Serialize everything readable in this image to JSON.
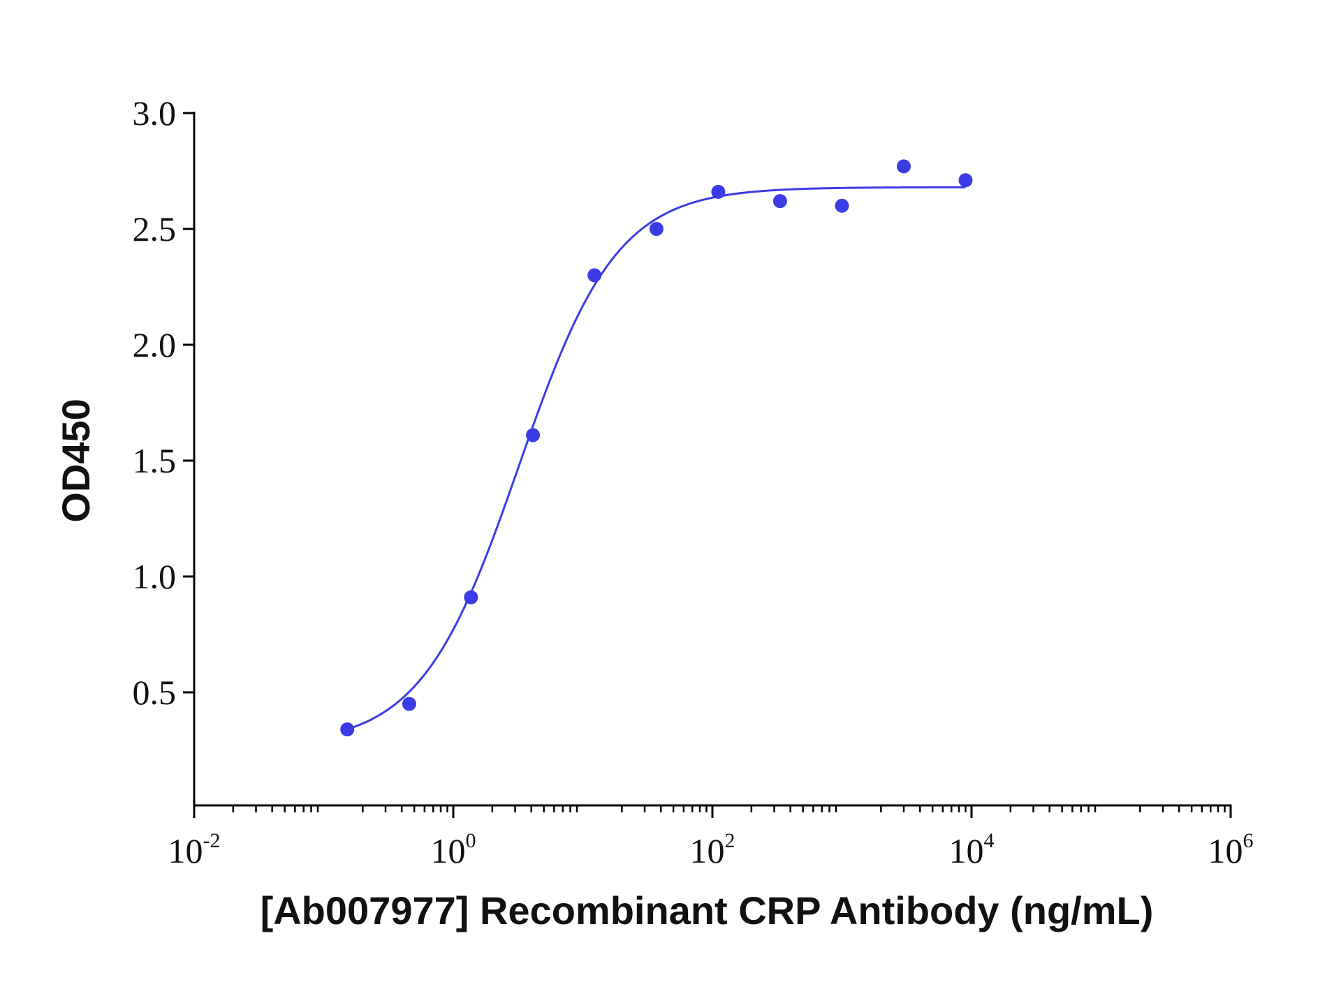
{
  "chart_data": {
    "type": "scatter",
    "xlabel": "[Ab007977] Recombinant CRP Antibody (ng/mL)",
    "ylabel": "OD450",
    "xscale": "log",
    "xlim": [
      0.01,
      1000000
    ],
    "ylim": [
      0.0,
      3.0
    ],
    "x_ticks": [
      {
        "base": "10",
        "exp": "-2"
      },
      {
        "base": "10",
        "exp": "0"
      },
      {
        "base": "10",
        "exp": "2"
      },
      {
        "base": "10",
        "exp": "4"
      },
      {
        "base": "10",
        "exp": "6"
      }
    ],
    "y_ticks": [
      "0.5",
      "1.0",
      "1.5",
      "2.0",
      "2.5",
      "3.0"
    ],
    "grid": false,
    "legend": "none",
    "series": [
      {
        "marker": "circle",
        "color": "#3c3ce6",
        "points": [
          {
            "x": 0.152,
            "y": 0.34
          },
          {
            "x": 0.457,
            "y": 0.45
          },
          {
            "x": 1.37,
            "y": 0.91
          },
          {
            "x": 4.12,
            "y": 1.61
          },
          {
            "x": 12.3,
            "y": 2.3
          },
          {
            "x": 37.0,
            "y": 2.5
          },
          {
            "x": 111,
            "y": 2.66
          },
          {
            "x": 333,
            "y": 2.62
          },
          {
            "x": 1000,
            "y": 2.6
          },
          {
            "x": 3000,
            "y": 2.77
          },
          {
            "x": 9000,
            "y": 2.71
          }
        ],
        "fit": {
          "model": "4PL",
          "bottom": 0.27,
          "top": 2.68,
          "ec50": 3.2,
          "hill": 1.15,
          "x_range": [
            0.152,
            9000
          ]
        }
      }
    ]
  }
}
